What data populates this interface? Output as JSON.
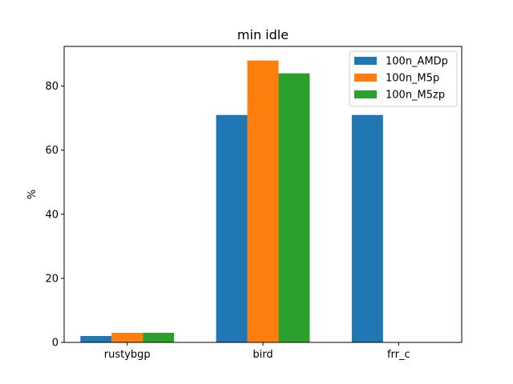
{
  "chart_data": {
    "type": "bar",
    "title": "min idle",
    "xlabel": "",
    "ylabel": "%",
    "categories": [
      "rustybgp",
      "bird",
      "frr_c"
    ],
    "series": [
      {
        "name": "100n_AMDp",
        "color": "#1f77b4",
        "values": [
          2,
          71,
          71
        ]
      },
      {
        "name": "100n_M5p",
        "color": "#ff7f0e",
        "values": [
          3,
          88,
          0
        ]
      },
      {
        "name": "100n_M5zp",
        "color": "#2ca02c",
        "values": [
          3,
          84,
          0
        ]
      }
    ],
    "ylim": [
      0,
      92.4
    ],
    "yticks": [
      0,
      20,
      40,
      60,
      80
    ],
    "grid": false,
    "legend_position": "top-right"
  }
}
